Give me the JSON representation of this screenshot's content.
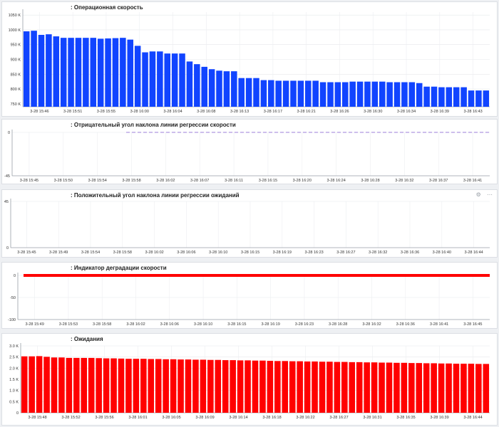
{
  "panels": [
    {
      "title": ": Операционная скорость",
      "chart_data": {
        "type": "bar",
        "yticks": [
          "750 K",
          "800 K",
          "850 K",
          "900 K",
          "950 K",
          "1000 K",
          "1050 K"
        ],
        "ytick_values": [
          750,
          800,
          850,
          900,
          950,
          1000,
          1050
        ],
        "ylim": [
          740,
          1060
        ],
        "xticks": [
          "3-28 15:46",
          "3-28 15:51",
          "3-28 15:55",
          "3-28 16:00",
          "3-28 16:04",
          "3-28 16:08",
          "3-28 16:13",
          "3-28 16:17",
          "3-28 16:21",
          "3-28 16:26",
          "3-28 16:30",
          "3-28 16:34",
          "3-28 16:39",
          "3-28 16:43"
        ],
        "values": [
          995,
          997,
          983,
          985,
          978,
          973,
          973,
          973,
          973,
          973,
          970,
          971,
          972,
          973,
          967,
          946,
          924,
          927,
          927,
          920,
          920,
          920,
          893,
          884,
          875,
          867,
          862,
          860,
          860,
          837,
          837,
          837,
          830,
          830,
          828,
          828,
          828,
          828,
          828,
          828,
          823,
          823,
          823,
          823,
          825,
          825,
          825,
          825,
          825,
          823,
          823,
          823,
          823,
          820,
          808,
          808,
          806,
          806,
          806,
          806,
          795,
          795,
          795
        ],
        "color": "#1144ff"
      }
    },
    {
      "title": ": Отрицательный угол наклона линии регрессии скорости",
      "chart_data": {
        "type": "line",
        "yticks": [
          "-45",
          "0"
        ],
        "ytick_values": [
          -45,
          0
        ],
        "ylim": [
          -45,
          0
        ],
        "xticks": [
          "3-28 15:45",
          "3-28 15:50",
          "3-28 15:54",
          "3-28 15:58",
          "3-28 16:02",
          "3-28 16:07",
          "3-28 16:11",
          "3-28 16:15",
          "3-28 16:20",
          "3-28 16:24",
          "3-28 16:28",
          "3-28 16:32",
          "3-28 16:37",
          "3-28 16:41"
        ],
        "series_value": 0,
        "color": "#9b7ed9",
        "dashed": true
      }
    },
    {
      "title": ": Положительный угол наклона линии регрессии ожиданий",
      "tools": [
        "⚙",
        "⋯"
      ],
      "chart_data": {
        "type": "line",
        "yticks": [
          "0",
          "45"
        ],
        "ytick_values": [
          0,
          45
        ],
        "ylim": [
          0,
          45
        ],
        "xticks": [
          "3-28 15:45",
          "3-28 15:49",
          "3-28 15:54",
          "3-28 15:58",
          "3-28 16:02",
          "3-28 16:06",
          "3-28 16:10",
          "3-28 16:15",
          "3-28 16:19",
          "3-28 16:23",
          "3-28 16:27",
          "3-28 16:32",
          "3-28 16:36",
          "3-28 16:40",
          "3-28 16:44"
        ]
      }
    },
    {
      "title": ": Индикатор деградации скорости",
      "chart_data": {
        "type": "line",
        "yticks": [
          "-100",
          "-50",
          "0"
        ],
        "ytick_values": [
          -100,
          -50,
          0
        ],
        "ylim": [
          -100,
          0
        ],
        "xticks": [
          "3-28 15:49",
          "3-28 15:53",
          "3-28 15:58",
          "3-28 16:02",
          "3-28 16:06",
          "3-28 16:10",
          "3-28 16:15",
          "3-28 16:19",
          "3-28 16:23",
          "3-28 16:28",
          "3-28 16:32",
          "3-28 16:36",
          "3-28 16:41",
          "3-28 16:45"
        ],
        "series_value": 0,
        "color": "#ff0000"
      }
    },
    {
      "title": ": Ожидания",
      "chart_data": {
        "type": "bar",
        "yticks": [
          "0",
          "0.5 K",
          "1.0 K",
          "1.5 K",
          "2.0 K",
          "2.5 K",
          "3.0 K"
        ],
        "ytick_values": [
          0,
          500,
          1000,
          1500,
          2000,
          2500,
          3000
        ],
        "ylim": [
          0,
          3000
        ],
        "xticks": [
          "3-28 15:48",
          "3-28 15:52",
          "3-28 15:56",
          "3-28 16:01",
          "3-28 16:05",
          "3-28 16:09",
          "3-28 16:14",
          "3-28 16:18",
          "3-28 16:22",
          "3-28 16:27",
          "3-28 16:31",
          "3-28 16:35",
          "3-28 16:39",
          "3-28 16:44"
        ],
        "values": [
          2530,
          2530,
          2540,
          2510,
          2480,
          2480,
          2460,
          2460,
          2460,
          2460,
          2450,
          2440,
          2440,
          2430,
          2420,
          2420,
          2420,
          2410,
          2410,
          2400,
          2400,
          2390,
          2390,
          2380,
          2380,
          2370,
          2370,
          2360,
          2360,
          2350,
          2350,
          2340,
          2340,
          2330,
          2320,
          2320,
          2310,
          2310,
          2300,
          2300,
          2290,
          2290,
          2280,
          2280,
          2270,
          2270,
          2260,
          2260,
          2250,
          2250,
          2240,
          2240,
          2230,
          2230,
          2220,
          2220,
          2210,
          2210,
          2200,
          2200,
          2200,
          2190,
          2190
        ],
        "color": "#ff0000"
      }
    }
  ]
}
